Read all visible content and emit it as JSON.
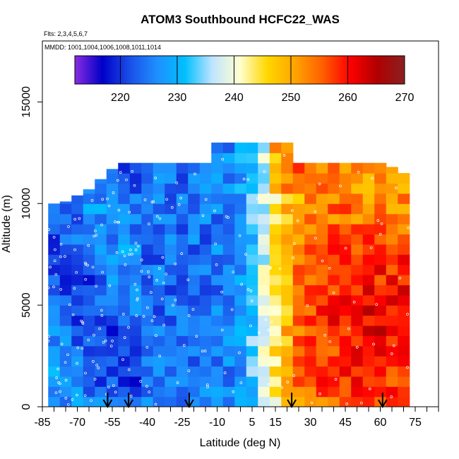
{
  "chart_data": {
    "type": "heatmap",
    "title": "ATOM3 Southbound HCFC22_WAS",
    "flights_label": "Flts: 2,3,4,5,6,7",
    "dates_label": "MMDD: 1001,1004,1006,1008,1011,1014",
    "xlabel": "Latitude (deg N)",
    "ylabel": "Altitude (m)",
    "xlim": [
      -85,
      85
    ],
    "ylim": [
      0,
      18000
    ],
    "x_ticks": [
      -85,
      -70,
      -55,
      -40,
      -25,
      -10,
      5,
      15,
      30,
      45,
      60,
      75
    ],
    "y_ticks": [
      0,
      5000,
      10000,
      15000
    ],
    "colorbar": {
      "min": 212,
      "max": 270,
      "ticks": [
        220,
        230,
        240,
        250,
        260,
        270
      ],
      "colors": [
        "#8a2be2",
        "#0000c8",
        "#1a4fe8",
        "#1e90ff",
        "#00bfff",
        "#bfe4ff",
        "#ffffd0",
        "#ffd700",
        "#ffa500",
        "#ff6000",
        "#ff0000",
        "#b00000",
        "#8b2020"
      ]
    },
    "field": {
      "columns": [
        {
          "lat": -80,
          "top": 10000
        },
        {
          "lat": -75,
          "top": 10100
        },
        {
          "lat": -70,
          "top": 10400
        },
        {
          "lat": -65,
          "top": 10700
        },
        {
          "lat": -60,
          "top": 11200
        },
        {
          "lat": -55,
          "top": 11700
        },
        {
          "lat": -50,
          "top": 12000
        },
        {
          "lat": -45,
          "top": 12000
        },
        {
          "lat": -40,
          "top": 12000
        },
        {
          "lat": -35,
          "top": 12000
        },
        {
          "lat": -30,
          "top": 12000
        },
        {
          "lat": -25,
          "top": 12000
        },
        {
          "lat": -20,
          "top": 12000
        },
        {
          "lat": -15,
          "top": 12000
        },
        {
          "lat": -10,
          "top": 13000
        },
        {
          "lat": -5,
          "top": 13000
        },
        {
          "lat": 0,
          "top": 13000
        },
        {
          "lat": 5,
          "top": 13000
        },
        {
          "lat": 10,
          "top": 13000
        },
        {
          "lat": 15,
          "top": 13000
        },
        {
          "lat": 20,
          "top": 13000
        },
        {
          "lat": 25,
          "top": 12000
        },
        {
          "lat": 30,
          "top": 12000
        },
        {
          "lat": 35,
          "top": 12000
        },
        {
          "lat": 40,
          "top": 12000
        },
        {
          "lat": 45,
          "top": 12000
        },
        {
          "lat": 50,
          "top": 12000
        },
        {
          "lat": 55,
          "top": 12000
        },
        {
          "lat": 60,
          "top": 12000
        },
        {
          "lat": 65,
          "top": 11800
        },
        {
          "lat": 70,
          "top": 11500
        }
      ],
      "layer_step": 500,
      "column_width": 5
    },
    "sounding_latitudes": [
      -57,
      -48,
      -22,
      22,
      61
    ]
  }
}
